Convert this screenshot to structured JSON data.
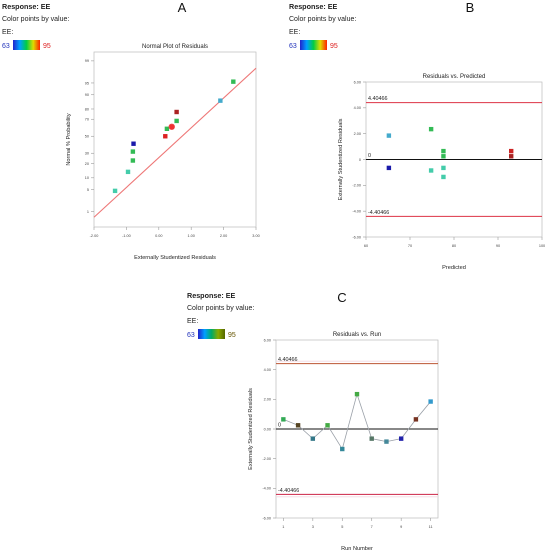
{
  "panels": [
    {
      "letter": "A",
      "legend": {
        "response": "Response: EE",
        "color_by": "Color points by value:",
        "var": "EE:",
        "min": "63",
        "max": "95",
        "gradient": [
          "#2222cc",
          "#00a0ff",
          "#00cc44",
          "#dddd00",
          "#ff2200"
        ]
      },
      "chart_data": {
        "type": "scatter",
        "title": "Normal Plot of Residuals",
        "xlabel": "Externally Studentized Residuals",
        "ylabel": "Normal % Probability",
        "xlim": [
          -2.0,
          3.0
        ],
        "ylim_z": [
          -2.8,
          2.6
        ],
        "x_ticks": [
          "-2.00",
          "-1.00",
          "0.00",
          "1.00",
          "2.00",
          "3.00"
        ],
        "y_ticks": [
          {
            "p": 1,
            "label": "1"
          },
          {
            "p": 5,
            "label": "5"
          },
          {
            "p": 10,
            "label": "10"
          },
          {
            "p": 20,
            "label": "20"
          },
          {
            "p": 30,
            "label": "30"
          },
          {
            "p": 50,
            "label": "50"
          },
          {
            "p": 70,
            "label": "70"
          },
          {
            "p": 80,
            "label": "80"
          },
          {
            "p": 90,
            "label": "90"
          },
          {
            "p": 95,
            "label": "95"
          },
          {
            "p": 99,
            "label": "99"
          }
        ],
        "reference_line": [
          [
            -2.0,
            -2.5
          ],
          [
            3.0,
            2.1
          ]
        ],
        "points": [
          {
            "x": -1.35,
            "p": 4.6,
            "color": "#44ccaa"
          },
          {
            "x": -0.95,
            "p": 13.6,
            "color": "#44ccaa"
          },
          {
            "x": -0.8,
            "p": 22.7,
            "color": "#33bb55"
          },
          {
            "x": -0.8,
            "p": 31.8,
            "color": "#33bb55"
          },
          {
            "x": -0.78,
            "p": 40.9,
            "color": "#1a1aaa"
          },
          {
            "x": 0.2,
            "p": 50.0,
            "color": "#dd2222"
          },
          {
            "x": 0.25,
            "p": 59.1,
            "color": "#33bb55"
          },
          {
            "x": 0.4,
            "p": 61.5,
            "color": "#ee3333"
          },
          {
            "x": 0.55,
            "p": 68.2,
            "color": "#33bb55"
          },
          {
            "x": 0.55,
            "p": 77.3,
            "color": "#aa2222"
          },
          {
            "x": 1.9,
            "p": 86.4,
            "color": "#44aacc"
          },
          {
            "x": 2.3,
            "p": 95.4,
            "color": "#33bb55"
          }
        ]
      }
    },
    {
      "letter": "B",
      "legend": {
        "response": "Response: EE",
        "color_by": "Color points by value:",
        "var": "EE:",
        "min": "63",
        "max": "95",
        "gradient": [
          "#2222cc",
          "#00a0ff",
          "#00cc44",
          "#dddd00",
          "#ff2200"
        ]
      },
      "chart_data": {
        "type": "scatter",
        "title": "Residuals vs. Predicted",
        "xlabel": "Predicted",
        "ylabel": "Externally Studentized Residuals",
        "xlim": [
          60,
          100
        ],
        "ylim": [
          -6,
          6
        ],
        "x_ticks": [
          "60",
          "70",
          "80",
          "90",
          "100"
        ],
        "y_ticks": [
          "-6.00",
          "-4.00",
          "-2.00",
          "0",
          "2.00",
          "4.00",
          "6.00"
        ],
        "limit_lines": [
          4.40466,
          -4.40466
        ],
        "limit_labels": [
          "4.40466",
          "-4.40466"
        ],
        "zero_label": "0",
        "points": [
          {
            "x": 65.2,
            "y": 1.85,
            "color": "#44aacc"
          },
          {
            "x": 65.2,
            "y": -0.65,
            "color": "#1a1aaa"
          },
          {
            "x": 74.8,
            "y": 2.35,
            "color": "#33bb55"
          },
          {
            "x": 74.8,
            "y": -0.85,
            "color": "#44ccaa"
          },
          {
            "x": 77.6,
            "y": 0.65,
            "color": "#33bb55"
          },
          {
            "x": 77.6,
            "y": 0.25,
            "color": "#33bb55"
          },
          {
            "x": 77.6,
            "y": -0.65,
            "color": "#44ccaa"
          },
          {
            "x": 77.6,
            "y": -1.35,
            "color": "#44ccaa"
          },
          {
            "x": 93.0,
            "y": 0.65,
            "color": "#cc2222"
          },
          {
            "x": 93.0,
            "y": 0.25,
            "color": "#aa2222"
          }
        ]
      }
    },
    {
      "letter": "C",
      "legend": {
        "response": "Response: EE",
        "color_by": "Color points by value:",
        "var": "EE:",
        "min": "63",
        "max": "95",
        "gradient": [
          "#2222cc",
          "#00a0ff",
          "#00aa66",
          "#88aa00",
          "#556600"
        ]
      },
      "chart_data": {
        "type": "line",
        "title": "Residuals vs. Run",
        "xlabel": "Run Number",
        "ylabel": "Externally Studentized Residuals",
        "xlim": [
          0.5,
          11.5
        ],
        "ylim": [
          -6,
          6
        ],
        "x_ticks": [
          "1",
          "3",
          "5",
          "7",
          "9",
          "11"
        ],
        "y_ticks": [
          "-6.00",
          "-4.00",
          "-2.00",
          "0.00",
          "2.00",
          "4.00",
          "6.00"
        ],
        "limit_lines": [
          4.40466,
          -4.40466
        ],
        "limit_labels": [
          "4.40466",
          "-4.40466"
        ],
        "zero_label": "0",
        "points": [
          {
            "x": 1,
            "y": 0.65,
            "color": "#33aa55"
          },
          {
            "x": 2,
            "y": 0.25,
            "color": "#554422"
          },
          {
            "x": 3,
            "y": -0.65,
            "color": "#337788"
          },
          {
            "x": 4,
            "y": 0.25,
            "color": "#44aa44"
          },
          {
            "x": 5,
            "y": -1.35,
            "color": "#338899"
          },
          {
            "x": 6,
            "y": 2.35,
            "color": "#44aa44"
          },
          {
            "x": 7,
            "y": -0.65,
            "color": "#557766"
          },
          {
            "x": 8,
            "y": -0.85,
            "color": "#448899"
          },
          {
            "x": 9,
            "y": -0.65,
            "color": "#2222aa"
          },
          {
            "x": 10,
            "y": 0.65,
            "color": "#773322"
          },
          {
            "x": 11,
            "y": 1.85,
            "color": "#3399cc"
          }
        ]
      }
    }
  ]
}
